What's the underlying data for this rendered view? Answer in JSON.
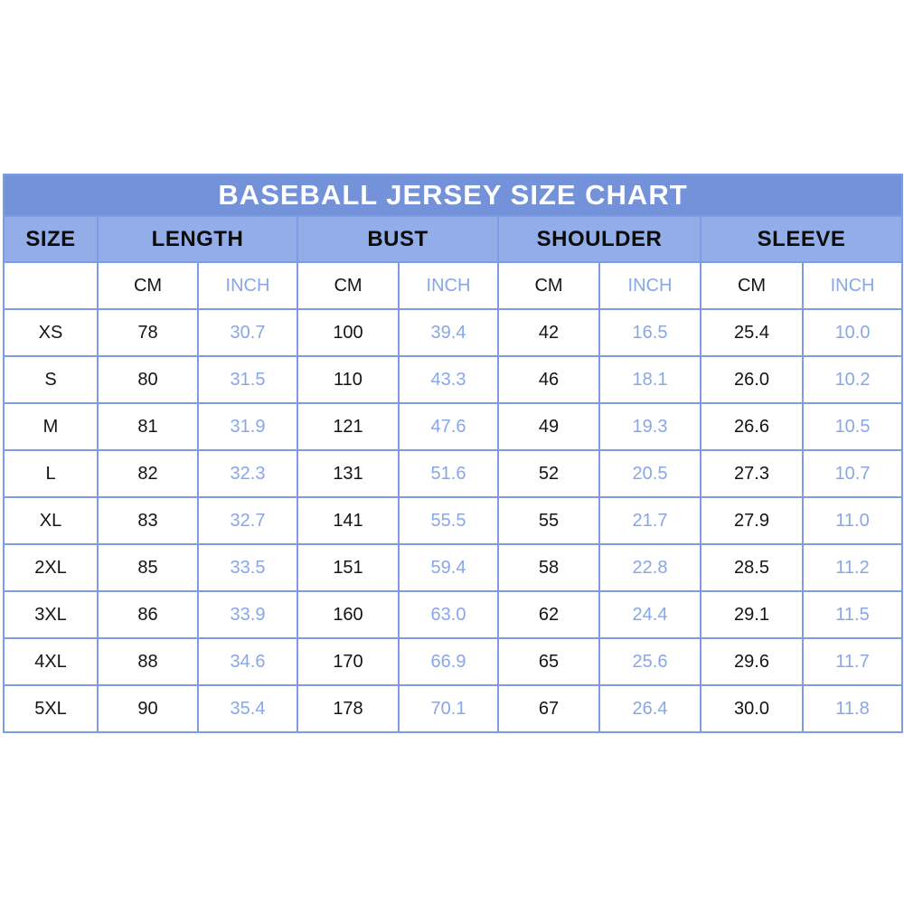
{
  "chart_data": {
    "type": "table",
    "title": "BASEBALL JERSEY SIZE CHART",
    "group_headers": [
      "SIZE",
      "LENGTH",
      "BUST",
      "SHOULDER",
      "SLEEVE"
    ],
    "unit_headers": [
      "CM",
      "INCH"
    ],
    "columns": [
      "SIZE",
      "LENGTH CM",
      "LENGTH INCH",
      "BUST CM",
      "BUST INCH",
      "SHOULDER CM",
      "SHOULDER INCH",
      "SLEEVE CM",
      "SLEEVE INCH"
    ],
    "rows": [
      [
        "XS",
        78,
        30.7,
        100,
        39.4,
        42,
        16.5,
        25.4,
        10.0
      ],
      [
        "S",
        80,
        31.5,
        110,
        43.3,
        46,
        18.1,
        26.0,
        10.2
      ],
      [
        "M",
        81,
        31.9,
        121,
        47.6,
        49,
        19.3,
        26.6,
        10.5
      ],
      [
        "L",
        82,
        32.3,
        131,
        51.6,
        52,
        20.5,
        27.3,
        10.7
      ],
      [
        "XL",
        83,
        32.7,
        141,
        55.5,
        55,
        21.7,
        27.9,
        11.0
      ],
      [
        "2XL",
        85,
        33.5,
        151,
        59.4,
        58,
        22.8,
        28.5,
        11.2
      ],
      [
        "3XL",
        86,
        33.9,
        160,
        63.0,
        62,
        24.4,
        29.1,
        11.5
      ],
      [
        "4XL",
        88,
        34.6,
        170,
        66.9,
        65,
        25.6,
        29.6,
        11.7
      ],
      [
        "5XL",
        90,
        35.4,
        178,
        70.1,
        67,
        26.4,
        30.0,
        11.8
      ]
    ]
  },
  "table": {
    "title": "BASEBALL JERSEY SIZE CHART",
    "groups": [
      {
        "label": "SIZE"
      },
      {
        "label": "LENGTH"
      },
      {
        "label": "BUST"
      },
      {
        "label": "SHOULDER"
      },
      {
        "label": "SLEEVE"
      }
    ],
    "units": {
      "cm": "CM",
      "inch": "INCH",
      "corner": ""
    },
    "rows": [
      {
        "size": "XS",
        "values": [
          "78",
          "30.7",
          "100",
          "39.4",
          "42",
          "16.5",
          "25.4",
          "10.0"
        ]
      },
      {
        "size": "S",
        "values": [
          "80",
          "31.5",
          "110",
          "43.3",
          "46",
          "18.1",
          "26.0",
          "10.2"
        ]
      },
      {
        "size": "M",
        "values": [
          "81",
          "31.9",
          "121",
          "47.6",
          "49",
          "19.3",
          "26.6",
          "10.5"
        ]
      },
      {
        "size": "L",
        "values": [
          "82",
          "32.3",
          "131",
          "51.6",
          "52",
          "20.5",
          "27.3",
          "10.7"
        ]
      },
      {
        "size": "XL",
        "values": [
          "83",
          "32.7",
          "141",
          "55.5",
          "55",
          "21.7",
          "27.9",
          "11.0"
        ]
      },
      {
        "size": "2XL",
        "values": [
          "85",
          "33.5",
          "151",
          "59.4",
          "58",
          "22.8",
          "28.5",
          "11.2"
        ]
      },
      {
        "size": "3XL",
        "values": [
          "86",
          "33.9",
          "160",
          "63.0",
          "62",
          "24.4",
          "29.1",
          "11.5"
        ]
      },
      {
        "size": "4XL",
        "values": [
          "88",
          "34.6",
          "170",
          "66.9",
          "65",
          "25.6",
          "29.6",
          "11.7"
        ]
      },
      {
        "size": "5XL",
        "values": [
          "90",
          "35.4",
          "178",
          "70.1",
          "67",
          "26.4",
          "30.0",
          "11.8"
        ]
      }
    ],
    "colors": {
      "title_background": "#7392da",
      "title_text": "#ffffff",
      "group_background": "#92ade8",
      "group_text": "#0c0c0c",
      "border": "#7c9ce3",
      "cm_text": "#151515",
      "inch_text": "#88a7e8",
      "page_background": "#ffffff"
    }
  }
}
